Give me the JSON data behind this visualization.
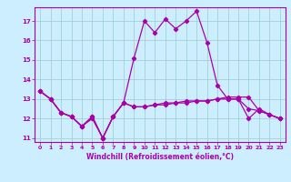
{
  "xlabel": "Windchill (Refroidissement éolien,°C)",
  "background_color": "#cceeff",
  "line_color": "#aa00aa",
  "grid_color": "#99cccc",
  "x_values": [
    0,
    1,
    2,
    3,
    4,
    5,
    6,
    7,
    8,
    9,
    10,
    11,
    12,
    13,
    14,
    15,
    16,
    17,
    18,
    19,
    20,
    21,
    22,
    23
  ],
  "series1": [
    13.4,
    13.0,
    12.3,
    12.1,
    11.6,
    12.1,
    11.0,
    12.1,
    12.8,
    12.6,
    12.6,
    12.7,
    12.7,
    12.8,
    12.8,
    12.9,
    12.9,
    13.0,
    13.1,
    13.1,
    13.1,
    12.4,
    12.2,
    12.0
  ],
  "series2": [
    13.4,
    13.0,
    12.3,
    12.1,
    11.6,
    12.0,
    11.0,
    12.1,
    12.8,
    15.1,
    17.0,
    16.4,
    17.1,
    16.6,
    17.0,
    17.5,
    15.9,
    13.7,
    13.0,
    13.0,
    12.5,
    12.4,
    12.2,
    12.0
  ],
  "series3": [
    13.4,
    13.0,
    12.3,
    12.1,
    11.6,
    12.1,
    11.0,
    12.1,
    12.8,
    12.6,
    12.6,
    12.7,
    12.8,
    12.8,
    12.9,
    12.9,
    12.9,
    13.0,
    13.0,
    13.0,
    12.0,
    12.5,
    12.2,
    12.0
  ],
  "ylim": [
    10.8,
    17.7
  ],
  "yticks": [
    11,
    12,
    13,
    14,
    15,
    16,
    17
  ],
  "xticks": [
    0,
    1,
    2,
    3,
    4,
    5,
    6,
    7,
    8,
    9,
    10,
    11,
    12,
    13,
    14,
    15,
    16,
    17,
    18,
    19,
    20,
    21,
    22,
    23
  ]
}
